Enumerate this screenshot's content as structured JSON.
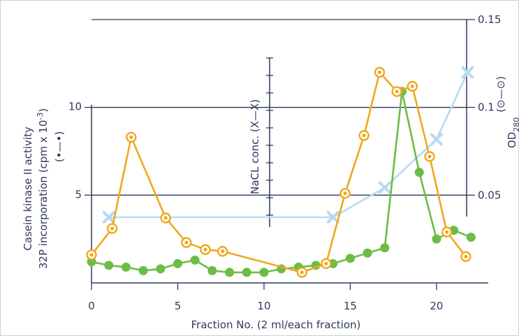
{
  "chart_data": {
    "type": "line",
    "xlabel": "Fraction No. (2 ml/each fraction)",
    "ylabel_left_line1": "Casein kinase II activity",
    "ylabel_left_line2": "32P incorporation (cpm x 10",
    "ylabel_left_sup": "-3",
    "ylabel_left_close": ")",
    "ylabel_right": "OD",
    "ylabel_right_sub": "280",
    "ylabel_mid": "NaCL conc. (X—X)",
    "xlim": [
      0,
      23
    ],
    "ylim_left": [
      0,
      15
    ],
    "ylim_right": [
      0,
      0.15
    ],
    "x_ticks": [
      "0",
      "5",
      "10",
      "15",
      "20"
    ],
    "x_tick_values": [
      0,
      5,
      10,
      15,
      20
    ],
    "y_left_ticks": [
      "5",
      "10"
    ],
    "y_left_tick_values": [
      5,
      10
    ],
    "y_right_ticks": [
      "0.05",
      "0.1",
      "0.15"
    ],
    "y_right_tick_values": [
      0.05,
      0.1,
      0.15
    ],
    "series": [
      {
        "key": "od280",
        "color": "#f0a81e",
        "marker": "ringed-circle",
        "axis": "right",
        "x": [
          0,
          1.2,
          2.3,
          4.3,
          5.5,
          6.6,
          7.6,
          12.2,
          13.6,
          14.7,
          15.8,
          16.7,
          17.7,
          18.6,
          19.6,
          20.6,
          21.7
        ],
        "y": [
          0.016,
          0.031,
          0.083,
          0.037,
          0.023,
          0.019,
          0.018,
          0.006,
          0.011,
          0.051,
          0.084,
          0.12,
          0.109,
          0.112,
          0.072,
          0.029,
          0.015
        ]
      },
      {
        "key": "casein",
        "color": "#6cbd45",
        "marker": "filled-circle",
        "axis": "left",
        "x": [
          0,
          1,
          2,
          3,
          4,
          5,
          6,
          7,
          8,
          9,
          10,
          11,
          12,
          13,
          14,
          15,
          16,
          17,
          18,
          19,
          20,
          21,
          22
        ],
        "y": [
          1.2,
          1.0,
          0.9,
          0.7,
          0.8,
          1.1,
          1.3,
          0.7,
          0.6,
          0.6,
          0.6,
          0.8,
          0.9,
          1.0,
          1.1,
          1.4,
          1.7,
          2.0,
          10.9,
          6.3,
          2.5,
          3.0,
          2.6
        ]
      },
      {
        "key": "nacl",
        "color": "#b7daf2",
        "marker": "x",
        "axis": "mid",
        "x": [
          1,
          14,
          17,
          20,
          21.8
        ],
        "y": [
          0,
          0,
          0.19,
          0.5,
          0.93
        ]
      }
    ],
    "legend_left": "(•—•)",
    "legend_right": "(⊙—⊙)"
  }
}
